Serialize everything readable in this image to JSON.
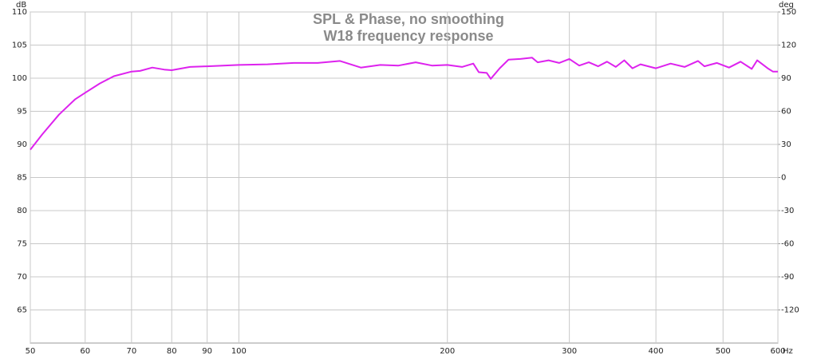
{
  "chart_data": {
    "type": "line",
    "title": "SPL & Phase, no smoothing",
    "subtitle": "W18 frequency response",
    "ylabel": "dB",
    "y2label": "deg",
    "xlabel": "Hz",
    "xscale": "log",
    "grid": true,
    "x": [
      50,
      52,
      55,
      58,
      60,
      63,
      66,
      70,
      72,
      75,
      78,
      80,
      85,
      90,
      100,
      110,
      120,
      130,
      140,
      150,
      160,
      170,
      180,
      190,
      200,
      210,
      218,
      222,
      228,
      231,
      238,
      245,
      255,
      265,
      270,
      280,
      290,
      300,
      310,
      320,
      330,
      340,
      350,
      360,
      370,
      380,
      400,
      420,
      440,
      460,
      470,
      490,
      510,
      530,
      550,
      560,
      580,
      590,
      600
    ],
    "series": [
      {
        "name": "W18",
        "color": "#dd22ee",
        "values": [
          89.2,
          91.5,
          94.5,
          96.8,
          97.8,
          99.2,
          100.3,
          101.0,
          101.1,
          101.6,
          101.3,
          101.2,
          101.7,
          101.8,
          102.0,
          102.1,
          102.3,
          102.3,
          102.6,
          101.6,
          102.0,
          101.9,
          102.4,
          101.9,
          102.0,
          101.7,
          102.2,
          100.9,
          100.8,
          99.9,
          101.5,
          102.8,
          102.9,
          103.1,
          102.4,
          102.7,
          102.3,
          102.9,
          101.9,
          102.4,
          101.8,
          102.5,
          101.7,
          102.7,
          101.5,
          102.1,
          101.5,
          102.2,
          101.7,
          102.6,
          101.8,
          102.3,
          101.6,
          102.5,
          101.4,
          102.7,
          101.5,
          101.0,
          101.0
        ]
      }
    ],
    "xlim": [
      50,
      600
    ],
    "xticks": [
      50,
      60,
      70,
      80,
      90,
      100,
      200,
      300,
      400,
      500,
      600
    ],
    "ylim": [
      60,
      110
    ],
    "yticks": [
      65,
      70,
      75,
      80,
      85,
      90,
      95,
      100,
      105,
      110
    ],
    "y2lim": [
      -150,
      150
    ],
    "y2ticks": [
      -120,
      -90,
      -60,
      -30,
      0,
      30,
      60,
      90,
      120,
      150
    ]
  }
}
